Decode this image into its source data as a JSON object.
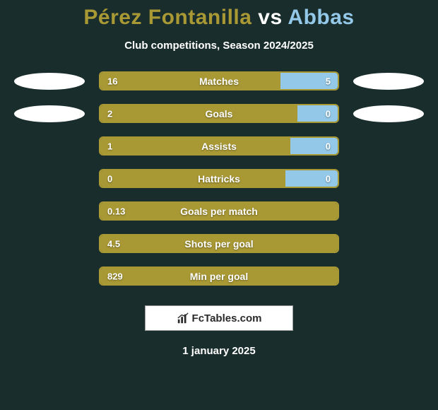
{
  "background_color": "#1a2d2d",
  "title": {
    "player1": "Pérez Fontanilla",
    "vs": "vs",
    "player2": "Abbas",
    "player1_color": "#a99935",
    "vs_color": "#ffffff",
    "player2_color": "#93c8e8"
  },
  "subtitle": "Club competitions, Season 2024/2025",
  "bar_color_left": "#a99935",
  "bar_color_right": "#93c8e8",
  "bar_border_color": "#a99935",
  "ellipse_color": "#ffffff",
  "stats": [
    {
      "label": "Matches",
      "left_val": "16",
      "right_val": "5",
      "left_pct": 76,
      "right_pct": 24,
      "show_ellipses": true
    },
    {
      "label": "Goals",
      "left_val": "2",
      "right_val": "0",
      "left_pct": 83,
      "right_pct": 17,
      "show_ellipses": true
    },
    {
      "label": "Assists",
      "left_val": "1",
      "right_val": "0",
      "left_pct": 80,
      "right_pct": 20,
      "show_ellipses": false
    },
    {
      "label": "Hattricks",
      "left_val": "0",
      "right_val": "0",
      "left_pct": 78,
      "right_pct": 22,
      "show_ellipses": false
    },
    {
      "label": "Goals per match",
      "left_val": "0.13",
      "right_val": "",
      "left_pct": 100,
      "right_pct": 0,
      "show_ellipses": false
    },
    {
      "label": "Shots per goal",
      "left_val": "4.5",
      "right_val": "",
      "left_pct": 100,
      "right_pct": 0,
      "show_ellipses": false
    },
    {
      "label": "Min per goal",
      "left_val": "829",
      "right_val": "",
      "left_pct": 100,
      "right_pct": 0,
      "show_ellipses": false
    }
  ],
  "footer_brand": "FcTables.com",
  "date": "1 january 2025"
}
